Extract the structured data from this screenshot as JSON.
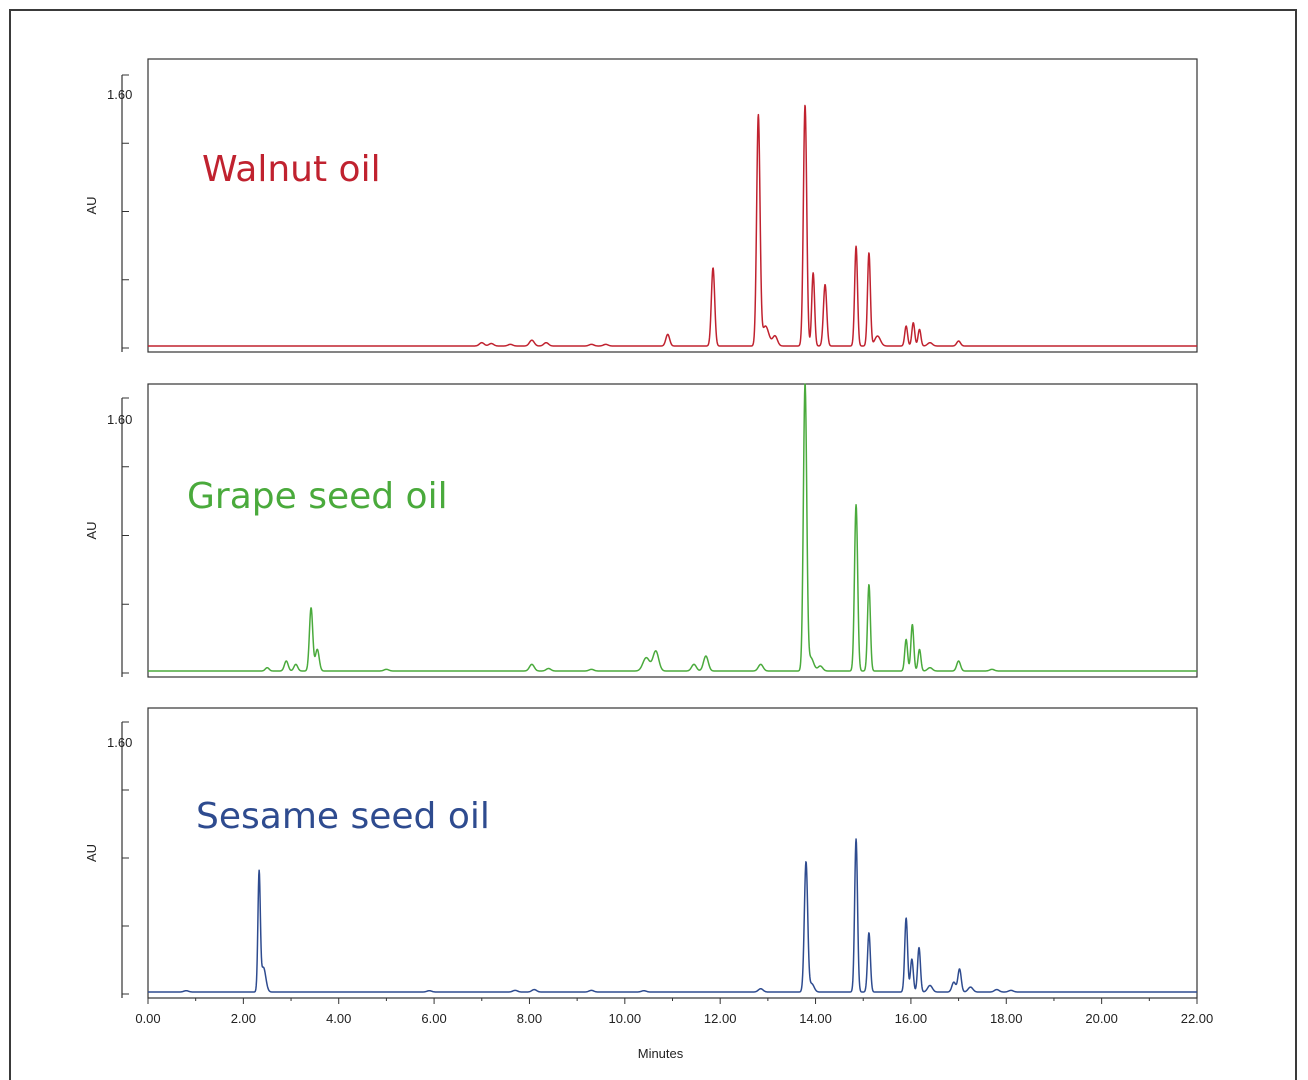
{
  "chart_data": [
    {
      "type": "line",
      "title": "Walnut oil",
      "title_color": "#c0222f",
      "line_color": "#c0222f",
      "ylabel": "AU",
      "ytick_labels": [
        "1.60"
      ],
      "xlim": [
        0,
        22
      ],
      "ylim": [
        0,
        1.72
      ],
      "baseline": 0.012,
      "series": [
        {
          "peaks": [
            {
              "x": 7.0,
              "h": 0.02,
              "w": 0.05
            },
            {
              "x": 7.2,
              "h": 0.015,
              "w": 0.05
            },
            {
              "x": 7.6,
              "h": 0.01,
              "w": 0.05
            },
            {
              "x": 8.05,
              "h": 0.035,
              "w": 0.05
            },
            {
              "x": 8.35,
              "h": 0.02,
              "w": 0.05
            },
            {
              "x": 9.3,
              "h": 0.01,
              "w": 0.05
            },
            {
              "x": 9.6,
              "h": 0.01,
              "w": 0.05
            },
            {
              "x": 10.9,
              "h": 0.07,
              "w": 0.04
            },
            {
              "x": 11.85,
              "h": 0.47,
              "w": 0.035
            },
            {
              "x": 12.8,
              "h": 1.38,
              "w": 0.035
            },
            {
              "x": 12.95,
              "h": 0.12,
              "w": 0.07
            },
            {
              "x": 13.15,
              "h": 0.06,
              "w": 0.05
            },
            {
              "x": 13.78,
              "h": 1.45,
              "w": 0.035
            },
            {
              "x": 13.95,
              "h": 0.44,
              "w": 0.03
            },
            {
              "x": 14.2,
              "h": 0.37,
              "w": 0.035
            },
            {
              "x": 14.85,
              "h": 0.6,
              "w": 0.03
            },
            {
              "x": 15.12,
              "h": 0.56,
              "w": 0.03
            },
            {
              "x": 15.3,
              "h": 0.06,
              "w": 0.06
            },
            {
              "x": 15.9,
              "h": 0.12,
              "w": 0.03
            },
            {
              "x": 16.05,
              "h": 0.14,
              "w": 0.03
            },
            {
              "x": 16.18,
              "h": 0.1,
              "w": 0.03
            },
            {
              "x": 16.4,
              "h": 0.02,
              "w": 0.05
            },
            {
              "x": 17.0,
              "h": 0.03,
              "w": 0.04
            }
          ]
        }
      ]
    },
    {
      "type": "line",
      "title": "Grape seed oil",
      "title_color": "#4aaa3c",
      "line_color": "#4aaa3c",
      "ylabel": "AU",
      "ytick_labels": [
        "1.60"
      ],
      "xlim": [
        0,
        22
      ],
      "ylim": [
        0,
        1.72
      ],
      "baseline": 0.012,
      "series": [
        {
          "peaks": [
            {
              "x": 2.5,
              "h": 0.02,
              "w": 0.04
            },
            {
              "x": 2.9,
              "h": 0.06,
              "w": 0.04
            },
            {
              "x": 3.1,
              "h": 0.04,
              "w": 0.04
            },
            {
              "x": 3.42,
              "h": 0.38,
              "w": 0.035
            },
            {
              "x": 3.55,
              "h": 0.13,
              "w": 0.04
            },
            {
              "x": 5.0,
              "h": 0.01,
              "w": 0.05
            },
            {
              "x": 8.05,
              "h": 0.04,
              "w": 0.05
            },
            {
              "x": 8.4,
              "h": 0.015,
              "w": 0.05
            },
            {
              "x": 9.3,
              "h": 0.01,
              "w": 0.05
            },
            {
              "x": 10.45,
              "h": 0.08,
              "w": 0.07
            },
            {
              "x": 10.65,
              "h": 0.12,
              "w": 0.06
            },
            {
              "x": 11.45,
              "h": 0.04,
              "w": 0.05
            },
            {
              "x": 11.7,
              "h": 0.09,
              "w": 0.05
            },
            {
              "x": 12.85,
              "h": 0.04,
              "w": 0.05
            },
            {
              "x": 13.78,
              "h": 1.72,
              "w": 0.035
            },
            {
              "x": 13.9,
              "h": 0.08,
              "w": 0.06
            },
            {
              "x": 14.1,
              "h": 0.03,
              "w": 0.05
            },
            {
              "x": 14.85,
              "h": 1.0,
              "w": 0.033
            },
            {
              "x": 15.12,
              "h": 0.52,
              "w": 0.03
            },
            {
              "x": 15.9,
              "h": 0.19,
              "w": 0.03
            },
            {
              "x": 16.03,
              "h": 0.28,
              "w": 0.03
            },
            {
              "x": 16.18,
              "h": 0.13,
              "w": 0.03
            },
            {
              "x": 16.4,
              "h": 0.02,
              "w": 0.05
            },
            {
              "x": 17.0,
              "h": 0.06,
              "w": 0.04
            },
            {
              "x": 17.7,
              "h": 0.01,
              "w": 0.05
            }
          ]
        }
      ]
    },
    {
      "type": "line",
      "title": "Sesame seed oil",
      "title_color": "#2e4b8f",
      "line_color": "#2e4b8f",
      "ylabel": "AU",
      "xlabel": "Minutes",
      "ytick_labels": [
        "1.60"
      ],
      "xlim": [
        0,
        22
      ],
      "ylim": [
        0,
        1.72
      ],
      "baseline": 0.012,
      "xticks": [
        0,
        2,
        4,
        6,
        8,
        10,
        12,
        14,
        16,
        18,
        20,
        22
      ],
      "xtick_labels": [
        "0.00",
        "2.00",
        "4.00",
        "6.00",
        "8.00",
        "10.00",
        "12.00",
        "14.00",
        "16.00",
        "18.00",
        "20.00",
        "22.00"
      ],
      "series": [
        {
          "peaks": [
            {
              "x": 0.8,
              "h": 0.008,
              "w": 0.05
            },
            {
              "x": 2.33,
              "h": 0.71,
              "w": 0.025
            },
            {
              "x": 2.42,
              "h": 0.15,
              "w": 0.05
            },
            {
              "x": 5.9,
              "h": 0.008,
              "w": 0.05
            },
            {
              "x": 7.7,
              "h": 0.01,
              "w": 0.05
            },
            {
              "x": 8.1,
              "h": 0.015,
              "w": 0.05
            },
            {
              "x": 9.3,
              "h": 0.01,
              "w": 0.05
            },
            {
              "x": 10.4,
              "h": 0.008,
              "w": 0.05
            },
            {
              "x": 12.85,
              "h": 0.02,
              "w": 0.05
            },
            {
              "x": 13.8,
              "h": 0.79,
              "w": 0.035
            },
            {
              "x": 13.92,
              "h": 0.05,
              "w": 0.05
            },
            {
              "x": 14.85,
              "h": 0.93,
              "w": 0.03
            },
            {
              "x": 15.12,
              "h": 0.36,
              "w": 0.03
            },
            {
              "x": 15.9,
              "h": 0.45,
              "w": 0.03
            },
            {
              "x": 16.02,
              "h": 0.2,
              "w": 0.03
            },
            {
              "x": 16.17,
              "h": 0.27,
              "w": 0.03
            },
            {
              "x": 16.4,
              "h": 0.04,
              "w": 0.05
            },
            {
              "x": 16.9,
              "h": 0.06,
              "w": 0.04
            },
            {
              "x": 17.02,
              "h": 0.14,
              "w": 0.035
            },
            {
              "x": 17.25,
              "h": 0.03,
              "w": 0.05
            },
            {
              "x": 17.8,
              "h": 0.015,
              "w": 0.05
            },
            {
              "x": 18.1,
              "h": 0.01,
              "w": 0.05
            }
          ]
        }
      ]
    }
  ]
}
